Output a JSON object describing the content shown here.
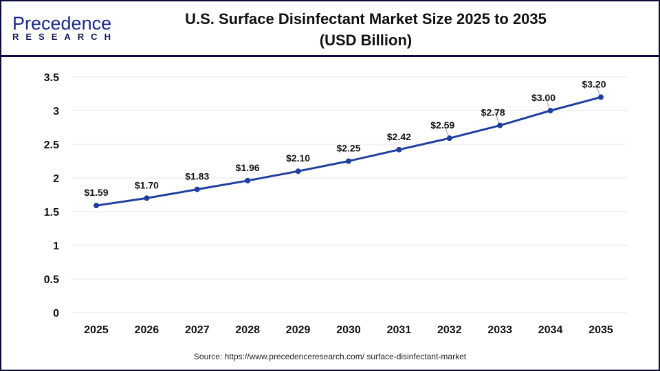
{
  "logo": {
    "top": "Precedence",
    "bottom": "RESEARCH"
  },
  "title_line1": "U.S. Surface Disinfectant Market Size 2025 to 2035",
  "title_line2": "(USD Billion)",
  "source": "Source: https://www.precedenceresearch.com/ surface-disinfectant-market",
  "colors": {
    "line": "#1f3f9e",
    "frame": "#0d0d3d",
    "grid": "#e6e6e6"
  },
  "chart_data": {
    "type": "line",
    "title": "U.S. Surface Disinfectant Market Size 2025 to 2035 (USD Billion)",
    "categories": [
      "2025",
      "2026",
      "2027",
      "2028",
      "2029",
      "2030",
      "2031",
      "2032",
      "2033",
      "2034",
      "2035"
    ],
    "values": [
      1.59,
      1.7,
      1.83,
      1.96,
      2.1,
      2.25,
      2.42,
      2.59,
      2.78,
      3.0,
      3.2
    ],
    "data_labels": [
      "$1.59",
      "$1.70",
      "$1.83",
      "$1.96",
      "$2.10",
      "$2.25",
      "$2.42",
      "$2.59",
      "$2.78",
      "$3.00",
      "$3.20"
    ],
    "yticks": [
      "0",
      "0.5",
      "1",
      "1.5",
      "2",
      "2.5",
      "3",
      "3.5"
    ],
    "ylim": [
      0,
      3.5
    ],
    "grid": true,
    "legend": "none"
  }
}
